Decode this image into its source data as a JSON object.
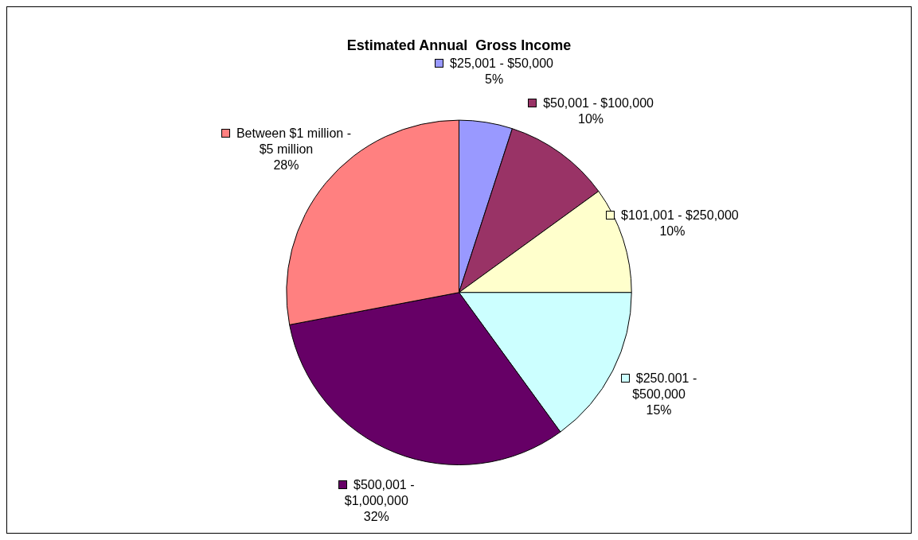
{
  "chart_data": {
    "type": "pie",
    "title": "Estimated Annual  Gross Income",
    "categories": [
      "$25,001 - $50,000",
      "$50,001 - $100,000",
      "$101,001 - $250,000",
      "$250.001 - $500,000",
      "$500,001 - $1,000,000",
      "Between $1 million - $5 million"
    ],
    "values": [
      5,
      10,
      10,
      15,
      32,
      28
    ],
    "value_labels": [
      "5%",
      "10%",
      "10%",
      "15%",
      "32%",
      "28%"
    ],
    "colors": [
      "#9999ff",
      "#993366",
      "#ffffcc",
      "#ccffff",
      "#660066",
      "#ff8080"
    ],
    "legend": "right"
  }
}
